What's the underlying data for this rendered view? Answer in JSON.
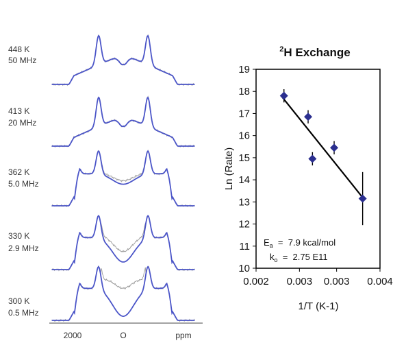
{
  "chart_data": [
    {
      "type": "line",
      "description_free": true,
      "spectra": [
        {
          "temperature": "448 K",
          "rate": "50 MHz"
        },
        {
          "temperature": "413 K",
          "rate": "20 MHz"
        },
        {
          "temperature": "362 K",
          "rate": "5.0 MHz"
        },
        {
          "temperature": "330 K",
          "rate": "2.9  MHz"
        },
        {
          "temperature": "300 K",
          "rate": "0.5 MHz"
        }
      ],
      "x_ticks": [
        "2000",
        "O",
        "ppm"
      ],
      "colors": {
        "simulated": "#4b55c8",
        "experimental": "#9a9a9a"
      }
    },
    {
      "type": "scatter",
      "title_sup": "2",
      "title_main": "H Exchange",
      "xlabel": "1/T (K-1)",
      "ylabel": "Ln (Rate)",
      "xlim": [
        0.002,
        0.004
      ],
      "ylim": [
        10,
        19
      ],
      "x_tick_labels": [
        "0.002",
        "0.003",
        "0.003",
        "0.004"
      ],
      "x_tick_values": [
        0.002,
        0.0027,
        0.0033,
        0.004
      ],
      "y_ticks": [
        10,
        11,
        12,
        13,
        14,
        15,
        16,
        17,
        18,
        19
      ],
      "points": [
        {
          "x": 0.00245,
          "y": 17.8,
          "err": 0.3
        },
        {
          "x": 0.00284,
          "y": 16.85,
          "err": 0.3
        },
        {
          "x": 0.00326,
          "y": 15.45,
          "err": 0.3
        },
        {
          "x": 0.00291,
          "y": 14.95,
          "err": 0.3
        },
        {
          "x": 0.00372,
          "y": 13.15,
          "err": 1.2
        }
      ],
      "fit_line": {
        "x": [
          0.00242,
          0.00372
        ],
        "y": [
          17.75,
          13.2
        ]
      },
      "annotation": {
        "ea_symbol": "E",
        "ea_sub": "a",
        "ea_text": "  =  7.9 kcal/mol",
        "k0_symbol": "k",
        "k0_sub": "o",
        "k0_text": "  =  2.75 E11"
      },
      "colors": {
        "marker": "#2b2f8f",
        "line": "#000000"
      }
    }
  ]
}
